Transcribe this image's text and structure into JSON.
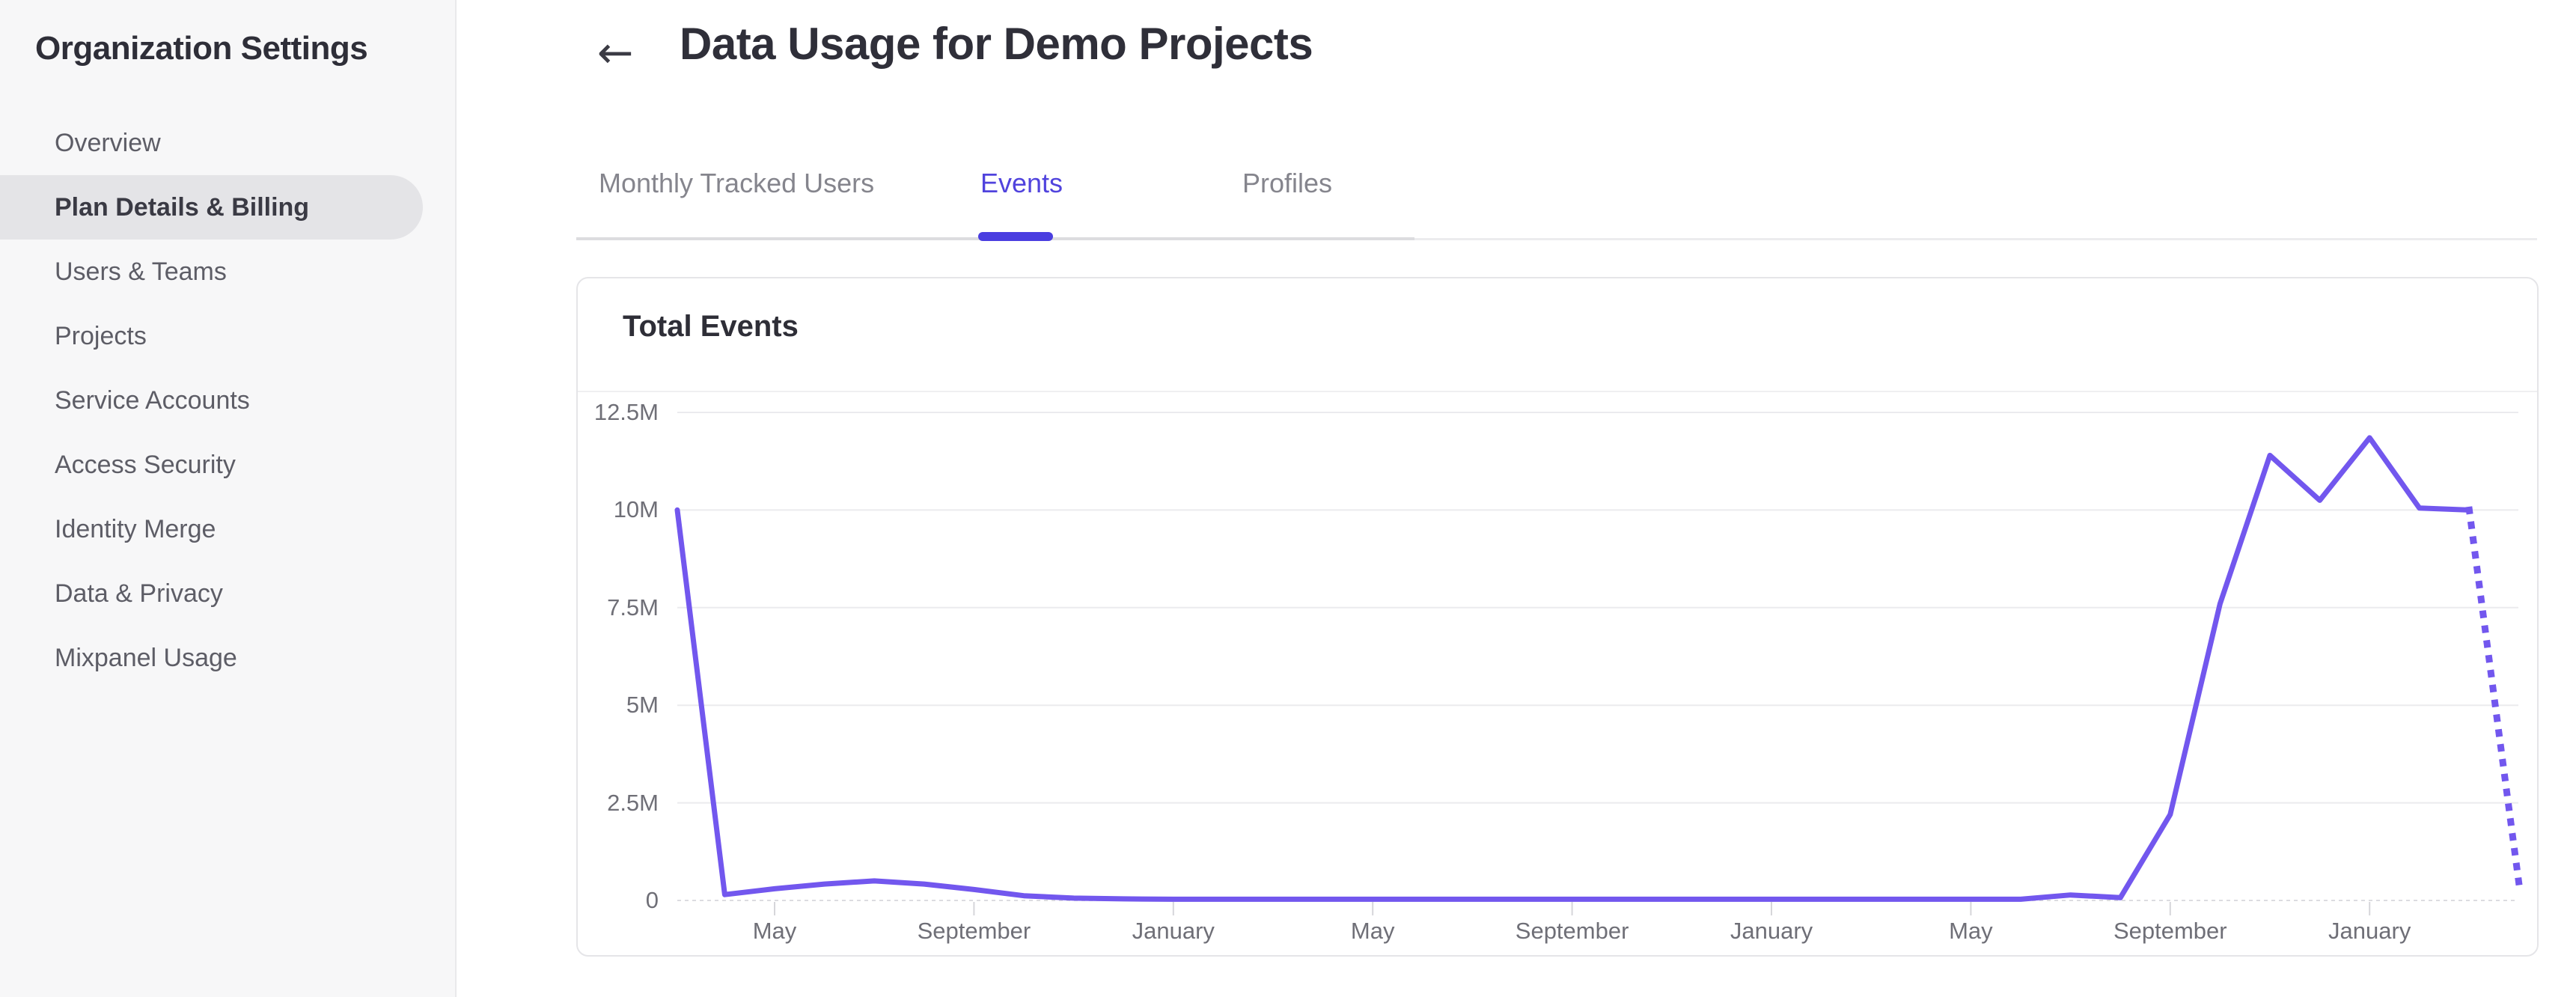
{
  "sidebar": {
    "title": "Organization Settings",
    "items": [
      {
        "label": "Overview",
        "active": false
      },
      {
        "label": "Plan Details & Billing",
        "active": true
      },
      {
        "label": "Users & Teams",
        "active": false
      },
      {
        "label": "Projects",
        "active": false
      },
      {
        "label": "Service Accounts",
        "active": false
      },
      {
        "label": "Access Security",
        "active": false
      },
      {
        "label": "Identity Merge",
        "active": false
      },
      {
        "label": "Data & Privacy",
        "active": false
      },
      {
        "label": "Mixpanel Usage",
        "active": false
      }
    ]
  },
  "header": {
    "back_icon": "←",
    "title": "Data Usage for Demo Projects"
  },
  "tabs": [
    {
      "label": "Monthly Tracked Users",
      "active": false
    },
    {
      "label": "Events",
      "active": true
    },
    {
      "label": "Profiles",
      "active": false
    }
  ],
  "card": {
    "title": "Total Events"
  },
  "colors": {
    "accent_purple": "#5043dd",
    "tab_indicator": "#4a3ee0",
    "line_purple": "#7257ee",
    "grid": "#ebebee",
    "zero_line": "#dcdce0",
    "tick": "#d6d6da",
    "sidebar_selected_bg": "#e4e4e7",
    "card_border": "#e5e5e8"
  },
  "chart_data": {
    "type": "line",
    "title": "Total Events",
    "series_name": "Total Events",
    "grid": true,
    "legend": "none",
    "y_axis": {
      "unit": "millions",
      "range": [
        0,
        12.5
      ],
      "ticks": [
        {
          "label": "12.5M",
          "value": 12.5
        },
        {
          "label": "10M",
          "value": 10
        },
        {
          "label": "7.5M",
          "value": 7.5
        },
        {
          "label": "5M",
          "value": 5
        },
        {
          "label": "2.5M",
          "value": 2.5
        },
        {
          "label": "0",
          "value": 0
        }
      ]
    },
    "x_axis": {
      "note": "monthly points; labeled ticks every 4 months",
      "ticks": [
        {
          "label": "May",
          "index": 2
        },
        {
          "label": "September",
          "index": 6
        },
        {
          "label": "January",
          "index": 10
        },
        {
          "label": "May",
          "index": 14
        },
        {
          "label": "September",
          "index": 18
        },
        {
          "label": "January",
          "index": 22
        },
        {
          "label": "May",
          "index": 26
        },
        {
          "label": "September",
          "index": 30
        },
        {
          "label": "January",
          "index": 34
        }
      ]
    },
    "values_millions": [
      10.0,
      0.15,
      0.3,
      0.42,
      0.5,
      0.42,
      0.28,
      0.12,
      0.06,
      0.04,
      0.03,
      0.03,
      0.03,
      0.03,
      0.03,
      0.03,
      0.03,
      0.03,
      0.03,
      0.03,
      0.03,
      0.03,
      0.03,
      0.03,
      0.03,
      0.03,
      0.03,
      0.03,
      0.14,
      0.07,
      2.2,
      7.6,
      11.4,
      10.25,
      11.85,
      10.05,
      10.0
    ],
    "projection": {
      "index": 37,
      "value_millions": 0.4,
      "style": "dotted"
    }
  }
}
